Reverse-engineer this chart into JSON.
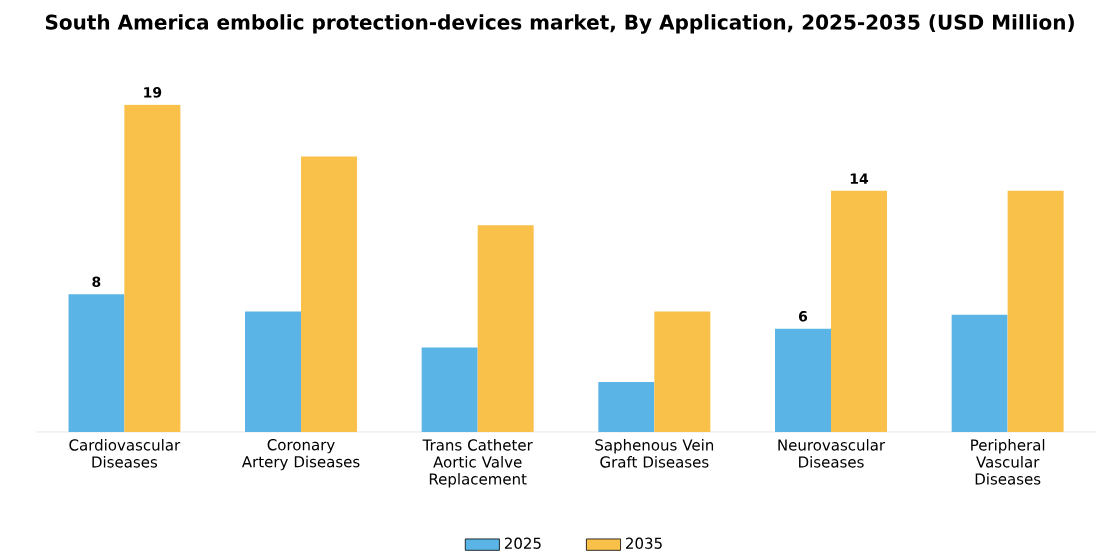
{
  "chart_data": {
    "type": "bar",
    "title": "South America embolic protection-devices market, By Application, 2025-2035 (USD Million)",
    "categories": [
      "Cardiovascular Diseases",
      "Coronary Artery Diseases",
      "Trans Catheter Aortic Valve Replacement",
      "Saphenous Vein Graft Diseases",
      "Neurovascular Diseases",
      "Peripheral Vascular Diseases"
    ],
    "series": [
      {
        "name": "2025",
        "color": "#5ab4e5",
        "values": [
          8,
          7,
          4.9,
          2.9,
          6,
          6.8
        ],
        "value_labels": [
          "8",
          null,
          null,
          null,
          "6",
          null
        ]
      },
      {
        "name": "2035",
        "color": "#f9c04a",
        "values": [
          19,
          16,
          12,
          7,
          14,
          14
        ],
        "value_labels": [
          "19",
          null,
          null,
          null,
          "14",
          null
        ]
      }
    ],
    "legend": "bottom"
  }
}
